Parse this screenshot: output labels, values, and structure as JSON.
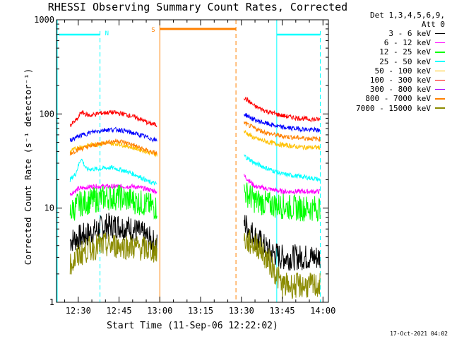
{
  "chart_data": {
    "type": "line",
    "title": "RHESSI Observing Summary Count Rates, Corrected",
    "xlabel": "Start Time (11-Sep-06 12:22:02)",
    "ylabel": "Corrected Count Rate (s⁻¹ detector⁻¹)",
    "yscale": "log",
    "ylim": [
      1,
      1000
    ],
    "yticks": [
      "1",
      "10",
      "100",
      "1000"
    ],
    "xlim": [
      "12:22",
      "14:02"
    ],
    "xticks": [
      "12:30",
      "12:45",
      "13:00",
      "13:15",
      "13:30",
      "13:45",
      "14:00"
    ],
    "legend_header": [
      "Det 1,3,4,5,6,9,",
      "Att 0"
    ],
    "legend_position": "right",
    "series": [
      {
        "name": "3 - 6 keV",
        "color": "#000000",
        "points": [
          [
            "12:27",
            4.5
          ],
          [
            "12:35",
            5.5
          ],
          [
            "12:40",
            6.5
          ],
          [
            "12:45",
            6.5
          ],
          [
            "12:50",
            6
          ],
          [
            "12:55",
            5
          ],
          [
            "12:59",
            4
          ],
          [
            "13:31",
            7
          ],
          [
            "13:35",
            5
          ],
          [
            "13:40",
            3.5
          ],
          [
            "13:45",
            3
          ],
          [
            "13:50",
            3
          ],
          [
            "13:55",
            3
          ],
          [
            "13:59",
            3
          ]
        ]
      },
      {
        "name": "6 - 12 keV",
        "color": "#ff00ff",
        "points": [
          [
            "12:27",
            14
          ],
          [
            "12:30",
            16
          ],
          [
            "12:35",
            17
          ],
          [
            "12:40",
            17
          ],
          [
            "12:45",
            17
          ],
          [
            "12:50",
            17
          ],
          [
            "12:55",
            16
          ],
          [
            "12:59",
            15
          ],
          [
            "13:31",
            22
          ],
          [
            "13:35",
            17
          ],
          [
            "13:40",
            16
          ],
          [
            "13:45",
            15
          ],
          [
            "13:50",
            15
          ],
          [
            "13:55",
            15
          ],
          [
            "13:59",
            15
          ]
        ]
      },
      {
        "name": "12 - 25 keV",
        "color": "#00ff00",
        "points": [
          [
            "12:27",
            9
          ],
          [
            "12:30",
            11
          ],
          [
            "12:35",
            12
          ],
          [
            "12:40",
            13
          ],
          [
            "12:45",
            13
          ],
          [
            "12:50",
            12
          ],
          [
            "12:55",
            11
          ],
          [
            "12:59",
            10
          ],
          [
            "13:31",
            15
          ],
          [
            "13:35",
            12
          ],
          [
            "13:40",
            11
          ],
          [
            "13:45",
            10.5
          ],
          [
            "13:50",
            10
          ],
          [
            "13:55",
            10
          ],
          [
            "13:59",
            10
          ]
        ]
      },
      {
        "name": "25 - 50 keV",
        "color": "#00ffff",
        "points": [
          [
            "12:27",
            20
          ],
          [
            "12:29",
            23
          ],
          [
            "12:31",
            34
          ],
          [
            "12:33",
            26
          ],
          [
            "12:37",
            26
          ],
          [
            "12:42",
            27
          ],
          [
            "12:47",
            25
          ],
          [
            "12:52",
            22
          ],
          [
            "12:56",
            19
          ],
          [
            "12:59",
            18
          ],
          [
            "13:31",
            36
          ],
          [
            "13:35",
            30
          ],
          [
            "13:40",
            26
          ],
          [
            "13:45",
            23
          ],
          [
            "13:50",
            22
          ],
          [
            "13:55",
            21
          ],
          [
            "13:59",
            20
          ]
        ]
      },
      {
        "name": "50 - 100 keV",
        "color": "#ffc000",
        "points": [
          [
            "12:27",
            40
          ],
          [
            "12:30",
            44
          ],
          [
            "12:35",
            47
          ],
          [
            "12:40",
            49
          ],
          [
            "12:45",
            48
          ],
          [
            "12:50",
            44
          ],
          [
            "12:55",
            40
          ],
          [
            "12:59",
            37
          ],
          [
            "13:31",
            65
          ],
          [
            "13:35",
            55
          ],
          [
            "13:40",
            50
          ],
          [
            "13:45",
            47
          ],
          [
            "13:50",
            45
          ],
          [
            "13:55",
            44
          ],
          [
            "13:59",
            44
          ]
        ]
      },
      {
        "name": "100 - 300 keV",
        "color": "#ff0000",
        "points": [
          [
            "12:27",
            75
          ],
          [
            "12:30",
            90
          ],
          [
            "12:31",
            105
          ],
          [
            "12:34",
            96
          ],
          [
            "12:38",
            102
          ],
          [
            "12:42",
            104
          ],
          [
            "12:47",
            100
          ],
          [
            "12:52",
            90
          ],
          [
            "12:56",
            80
          ],
          [
            "12:59",
            76
          ],
          [
            "13:31",
            150
          ],
          [
            "13:35",
            120
          ],
          [
            "13:40",
            105
          ],
          [
            "13:45",
            96
          ],
          [
            "13:50",
            91
          ],
          [
            "13:55",
            88
          ],
          [
            "13:59",
            87
          ]
        ]
      },
      {
        "name": "300 - 800 keV",
        "color": "#a000ff",
        "points": []
      },
      {
        "name": "800 - 7000 keV",
        "color": "#ff8000",
        "points": [
          [
            "12:27",
            38
          ],
          [
            "12:30",
            42
          ],
          [
            "12:35",
            46
          ],
          [
            "12:40",
            50
          ],
          [
            "12:45",
            52
          ],
          [
            "12:50",
            47
          ],
          [
            "12:55",
            41
          ],
          [
            "12:59",
            38
          ],
          [
            "13:31",
            80
          ],
          [
            "13:35",
            70
          ],
          [
            "13:40",
            62
          ],
          [
            "13:45",
            58
          ],
          [
            "13:50",
            56
          ],
          [
            "13:55",
            55
          ],
          [
            "13:59",
            54
          ]
        ]
      },
      {
        "name": "7000 - 15000 keV",
        "color": "#8b8b00",
        "points": [
          [
            "12:27",
            2.5
          ],
          [
            "12:32",
            3.5
          ],
          [
            "12:38",
            4
          ],
          [
            "12:45",
            4
          ],
          [
            "12:52",
            3.8
          ],
          [
            "12:59",
            3.5
          ],
          [
            "13:31",
            4.5
          ],
          [
            "13:36",
            4
          ],
          [
            "13:41",
            2.5
          ],
          [
            "13:45",
            1.5
          ],
          [
            "13:50",
            1.5
          ],
          [
            "13:55",
            1.5
          ],
          [
            "13:59",
            1.5
          ]
        ]
      },
      {
        "name": "",
        "color": "#0000ff",
        "points": [
          [
            "12:27",
            52
          ],
          [
            "12:30",
            58
          ],
          [
            "12:35",
            64
          ],
          [
            "12:40",
            68
          ],
          [
            "12:45",
            68
          ],
          [
            "12:50",
            63
          ],
          [
            "12:55",
            57
          ],
          [
            "12:59",
            52
          ],
          [
            "13:31",
            100
          ],
          [
            "13:35",
            86
          ],
          [
            "13:40",
            78
          ],
          [
            "13:45",
            72
          ],
          [
            "13:50",
            70
          ],
          [
            "13:55",
            68
          ],
          [
            "13:59",
            67
          ]
        ]
      }
    ],
    "annotations": [
      {
        "label": "N",
        "color": "#00ffff"
      },
      {
        "label": "S",
        "color": "#ff8000"
      }
    ]
  },
  "footer": "17-Oct-2021 04:02"
}
